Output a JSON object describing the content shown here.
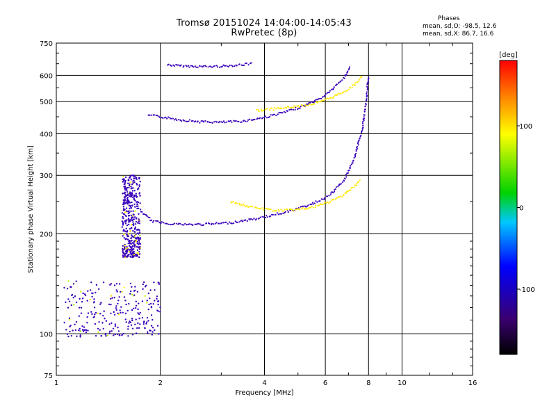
{
  "header": {
    "title_line1": "Tromsø 20151024 14:04:00-14:05:43",
    "title_line2": "RwPretec (8p)",
    "phases_heading": "Phases",
    "phases_o": "mean, sd,O: -98.5, 12.6",
    "phases_x": "mean, sd,X:  86.7, 16.6"
  },
  "chart_data": {
    "type": "scatter",
    "xlabel": "Frequency [MHz]",
    "ylabel": "Stationary phase Virtual Height [km]",
    "x_scale": "log",
    "y_scale": "log",
    "xlim": [
      1,
      16
    ],
    "ylim": [
      75,
      750
    ],
    "x_ticks": [
      1,
      2,
      4,
      6,
      8,
      10,
      16
    ],
    "y_ticks": [
      75,
      100,
      200,
      300,
      400,
      500,
      600,
      750
    ],
    "grid": true,
    "colorbar": {
      "label": "[deg]",
      "ticks": [
        100,
        0,
        -100
      ],
      "range": [
        -180,
        180
      ]
    },
    "traces": [
      {
        "x": [
          2.1,
          2.3,
          2.5,
          2.8,
          3.1,
          3.4,
          3.7
        ],
        "y": [
          645,
          640,
          638,
          637,
          640,
          645,
          650
        ],
        "phase": -100
      },
      {
        "x": [
          1.85,
          2.0,
          2.3,
          2.6,
          3.0,
          3.5,
          4.0,
          4.6,
          5.2,
          5.8,
          6.3,
          6.8,
          7.1
        ],
        "y": [
          455,
          450,
          440,
          435,
          433,
          437,
          448,
          465,
          485,
          510,
          545,
          590,
          640
        ],
        "phase": -100
      },
      {
        "x": [
          3.8,
          4.5,
          5.2,
          5.8,
          6.4,
          7.0,
          7.4,
          7.7
        ],
        "y": [
          470,
          478,
          486,
          498,
          520,
          545,
          570,
          600
        ],
        "phase": 100
      },
      {
        "x": [
          1.75,
          1.9,
          2.1,
          2.4,
          2.8,
          3.2,
          3.8,
          4.4,
          5.0,
          5.6,
          6.2,
          6.8,
          7.3,
          7.7,
          7.9,
          8.0
        ],
        "y": [
          235,
          218,
          215,
          213,
          214,
          216,
          222,
          230,
          238,
          248,
          262,
          290,
          340,
          420,
          520,
          600
        ],
        "phase": -100
      },
      {
        "x": [
          3.2,
          3.7,
          4.3,
          4.9,
          5.5,
          6.1,
          6.7,
          7.2,
          7.6
        ],
        "y": [
          250,
          240,
          235,
          236,
          240,
          248,
          260,
          275,
          290
        ],
        "phase": 100
      }
    ],
    "clusters": [
      {
        "x": [
          1.55,
          1.75
        ],
        "y": [
          170,
          300
        ],
        "phase": -100,
        "n": 420
      },
      {
        "x": [
          1.05,
          2.0
        ],
        "y": [
          98,
          145
        ],
        "phase": -100,
        "n": 260
      }
    ]
  }
}
